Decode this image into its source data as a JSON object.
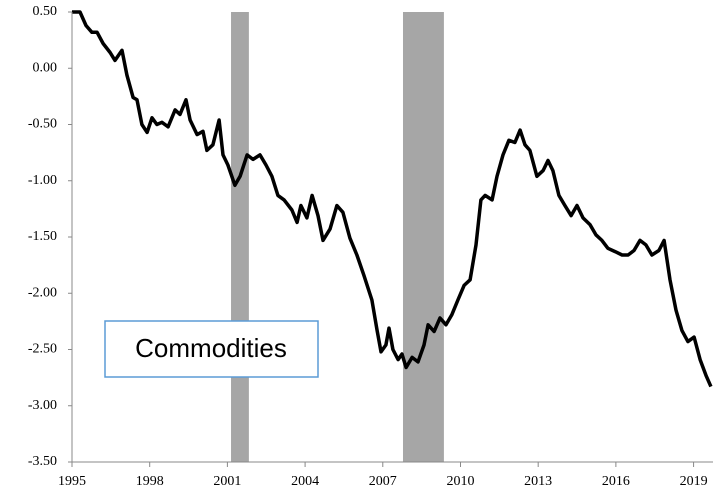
{
  "chart_data": {
    "type": "line",
    "annotation": "Commodities",
    "x": [
      1995.0,
      1995.31,
      1995.54,
      1995.77,
      1995.97,
      1996.2,
      1996.47,
      1996.66,
      1996.78,
      1996.93,
      1997.12,
      1997.36,
      1997.51,
      1997.7,
      1997.9,
      1998.09,
      1998.28,
      1998.47,
      1998.71,
      1998.98,
      1999.17,
      1999.4,
      1999.56,
      1999.83,
      2000.06,
      2000.21,
      2000.44,
      2000.68,
      2000.83,
      2001.02,
      2001.29,
      2001.49,
      2001.76,
      2001.99,
      2002.26,
      2002.49,
      2002.72,
      2002.95,
      2003.19,
      2003.49,
      2003.69,
      2003.84,
      2004.07,
      2004.27,
      2004.5,
      2004.69,
      2004.96,
      2005.23,
      2005.46,
      2005.73,
      2006.0,
      2006.27,
      2006.58,
      2006.78,
      2006.93,
      2007.12,
      2007.24,
      2007.39,
      2007.59,
      2007.74,
      2007.9,
      2008.13,
      2008.36,
      2008.59,
      2008.75,
      2008.98,
      2009.21,
      2009.44,
      2009.67,
      2009.9,
      2010.14,
      2010.37,
      2010.6,
      2010.79,
      2010.95,
      2011.22,
      2011.41,
      2011.64,
      2011.87,
      2012.1,
      2012.3,
      2012.49,
      2012.68,
      2012.95,
      2013.19,
      2013.38,
      2013.57,
      2013.8,
      2014.03,
      2014.27,
      2014.5,
      2014.73,
      2015.0,
      2015.23,
      2015.46,
      2015.69,
      2015.97,
      2016.24,
      2016.47,
      2016.7,
      2016.93,
      2017.16,
      2017.39,
      2017.66,
      2017.86,
      2018.09,
      2018.32,
      2018.55,
      2018.78,
      2019.02,
      2019.25,
      2019.48,
      2019.67
    ],
    "series": [
      {
        "color": "#000000",
        "values": [
          0.5,
          0.5,
          0.38,
          0.32,
          0.32,
          0.22,
          0.14,
          0.07,
          0.11,
          0.16,
          -0.06,
          -0.26,
          -0.28,
          -0.5,
          -0.57,
          -0.44,
          -0.5,
          -0.48,
          -0.52,
          -0.37,
          -0.41,
          -0.28,
          -0.46,
          -0.59,
          -0.56,
          -0.73,
          -0.68,
          -0.46,
          -0.77,
          -0.86,
          -1.04,
          -0.96,
          -0.77,
          -0.81,
          -0.77,
          -0.86,
          -0.96,
          -1.13,
          -1.17,
          -1.26,
          -1.37,
          -1.22,
          -1.33,
          -1.13,
          -1.31,
          -1.53,
          -1.43,
          -1.22,
          -1.28,
          -1.51,
          -1.66,
          -1.84,
          -2.06,
          -2.33,
          -2.52,
          -2.46,
          -2.31,
          -2.5,
          -2.59,
          -2.54,
          -2.66,
          -2.57,
          -2.61,
          -2.46,
          -2.28,
          -2.34,
          -2.22,
          -2.28,
          -2.19,
          -2.06,
          -1.93,
          -1.88,
          -1.57,
          -1.17,
          -1.13,
          -1.17,
          -0.96,
          -0.77,
          -0.64,
          -0.66,
          -0.55,
          -0.68,
          -0.73,
          -0.96,
          -0.91,
          -0.82,
          -0.91,
          -1.13,
          -1.22,
          -1.31,
          -1.22,
          -1.33,
          -1.39,
          -1.48,
          -1.53,
          -1.6,
          -1.63,
          -1.66,
          -1.66,
          -1.62,
          -1.53,
          -1.57,
          -1.66,
          -1.62,
          -1.53,
          -1.88,
          -2.15,
          -2.33,
          -2.43,
          -2.39,
          -2.59,
          -2.73,
          -2.83
        ]
      }
    ],
    "shaded": [
      [
        2001.14,
        2001.83
      ],
      [
        2007.78,
        2009.36
      ]
    ],
    "shade_color": "#a6a6a6",
    "xlim": [
      1995,
      2019.75
    ],
    "xticks": [
      1995,
      1998,
      2001,
      2004,
      2007,
      2010,
      2013,
      2016,
      2019
    ],
    "ylim": [
      -3.5,
      0.5
    ],
    "yticks": [
      {
        "value": 0.5,
        "label": "0.50"
      },
      {
        "value": 0,
        "label": "0.00"
      },
      {
        "value": -0.5,
        "label": "-0.50"
      },
      {
        "value": -1,
        "label": "-1.00"
      },
      {
        "value": -1.5,
        "label": "-1.50"
      },
      {
        "value": -2,
        "label": "-2.00"
      },
      {
        "value": -2.5,
        "label": "-2.50"
      },
      {
        "value": -3,
        "label": "-3.00"
      },
      {
        "value": -3.5,
        "label": "-3.50"
      }
    ]
  }
}
